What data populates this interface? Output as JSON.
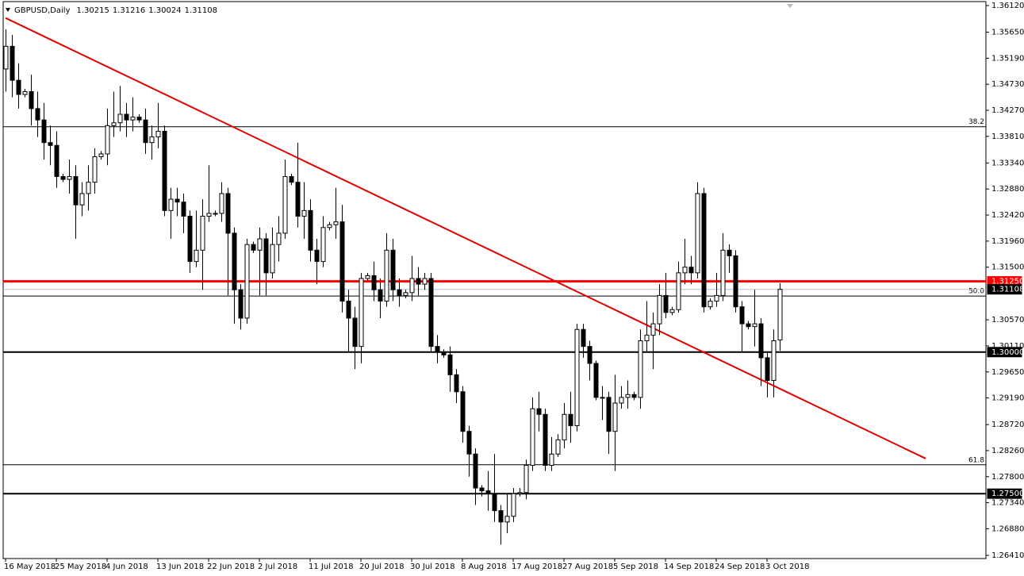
{
  "chart_data": {
    "type": "candlestick",
    "symbol": "GBPUSD,Daily",
    "categories": [
      "16 May 2018",
      null,
      null,
      null,
      null,
      null,
      null,
      null,
      "25 May 2018",
      null,
      null,
      null,
      null,
      null,
      null,
      null,
      "4 Jun 2018",
      null,
      null,
      null,
      null,
      null,
      null,
      null,
      "13 Jun 2018",
      null,
      null,
      null,
      null,
      null,
      null,
      null,
      "22 Jun 2018",
      null,
      null,
      null,
      null,
      null,
      null,
      null,
      "2 Jul 2018",
      null,
      null,
      null,
      null,
      null,
      null,
      null,
      "11 Jul 2018",
      null,
      null,
      null,
      null,
      null,
      null,
      null,
      "20 Jul 2018",
      null,
      null,
      null,
      null,
      null,
      null,
      null,
      "30 Jul 2018",
      null,
      null,
      null,
      null,
      null,
      null,
      null,
      "8 Aug 2018",
      null,
      null,
      null,
      null,
      null,
      null,
      null,
      "17 Aug 2018",
      null,
      null,
      null,
      null,
      null,
      null,
      null,
      "27 Aug 2018",
      null,
      null,
      null,
      null,
      null,
      null,
      null,
      "5 Sep 2018",
      null,
      null,
      null,
      null,
      null,
      null,
      null,
      "14 Sep 2018",
      null,
      null,
      null,
      null,
      null,
      null,
      null,
      "24 Sep 2018",
      null,
      null,
      null,
      null,
      null,
      null,
      null,
      "3 Oct 2018",
      null,
      null
    ],
    "open": [
      1.35,
      1.354,
      1.348,
      1.3455,
      1.346,
      1.343,
      1.341,
      1.337,
      1.3365,
      1.331,
      1.3305,
      1.331,
      1.326,
      1.328,
      1.33,
      1.3345,
      1.335,
      1.34,
      1.3405,
      1.342,
      1.341,
      1.3415,
      1.341,
      1.337,
      1.338,
      1.339,
      1.325,
      1.327,
      1.3265,
      1.324,
      1.316,
      1.318,
      1.324,
      1.3245,
      1.3245,
      1.328,
      1.321,
      1.311,
      1.306,
      1.319,
      1.318,
      1.32,
      1.314,
      1.319,
      1.321,
      1.331,
      1.33,
      1.324,
      1.325,
      1.318,
      1.316,
      1.322,
      1.3225,
      1.323,
      1.309,
      1.306,
      1.301,
      1.313,
      1.3135,
      1.311,
      1.309,
      1.318,
      1.311,
      1.31,
      1.3105,
      1.313,
      1.312,
      1.313,
      1.301,
      1.3,
      1.2995,
      1.296,
      1.293,
      1.286,
      1.282,
      1.276,
      1.2755,
      1.275,
      1.272,
      1.27,
      1.271,
      1.275,
      1.2752,
      1.28,
      1.29,
      1.289,
      1.28,
      1.282,
      1.2845,
      1.289,
      1.287,
      1.304,
      1.301,
      1.298,
      1.292,
      1.292,
      1.286,
      1.291,
      1.292,
      1.2925,
      1.292,
      1.302,
      1.303,
      1.305,
      1.31,
      1.307,
      1.3075,
      1.314,
      1.315,
      1.314,
      1.328,
      1.308,
      1.309,
      1.31,
      1.318,
      1.317,
      1.308,
      1.305,
      1.3045,
      1.305,
      1.299,
      1.295,
      1.30215
    ],
    "high": [
      1.357,
      1.356,
      1.351,
      1.3465,
      1.349,
      1.346,
      1.344,
      1.34,
      1.339,
      1.3315,
      1.334,
      1.333,
      1.33,
      1.333,
      1.336,
      1.3355,
      1.343,
      1.346,
      1.347,
      1.344,
      1.345,
      1.342,
      1.343,
      1.34,
      1.344,
      1.34,
      1.329,
      1.329,
      1.328,
      1.325,
      1.325,
      1.327,
      1.333,
      1.325,
      1.33,
      1.329,
      1.322,
      1.312,
      1.32,
      1.3195,
      1.322,
      1.321,
      1.322,
      1.324,
      1.334,
      1.3315,
      1.337,
      1.33,
      1.327,
      1.32,
      1.324,
      1.323,
      1.329,
      1.326,
      1.311,
      1.308,
      1.314,
      1.314,
      1.316,
      1.313,
      1.321,
      1.32,
      1.313,
      1.311,
      1.317,
      1.315,
      1.314,
      1.314,
      1.303,
      1.3005,
      1.301,
      1.297,
      1.294,
      1.287,
      1.283,
      1.2765,
      1.279,
      1.282,
      1.273,
      1.275,
      1.276,
      1.276,
      1.281,
      1.292,
      1.293,
      1.29,
      1.285,
      1.2855,
      1.291,
      1.293,
      1.305,
      1.305,
      1.302,
      1.2985,
      1.294,
      1.293,
      1.296,
      1.294,
      1.295,
      1.293,
      1.304,
      1.309,
      1.307,
      1.312,
      1.314,
      1.308,
      1.316,
      1.32,
      1.317,
      1.33,
      1.329,
      1.3095,
      1.314,
      1.321,
      1.319,
      1.318,
      1.309,
      1.3055,
      1.311,
      1.306,
      1.3,
      1.304,
      1.31216
    ],
    "low": [
      1.346,
      1.345,
      1.343,
      1.345,
      1.34,
      1.338,
      1.334,
      1.333,
      1.329,
      1.33,
      1.328,
      1.32,
      1.324,
      1.325,
      1.328,
      1.334,
      1.333,
      1.338,
      1.339,
      1.338,
      1.339,
      1.3405,
      1.335,
      1.334,
      1.336,
      1.324,
      1.32,
      1.324,
      1.321,
      1.314,
      1.315,
      1.311,
      1.323,
      1.324,
      1.323,
      1.31,
      1.305,
      1.304,
      1.305,
      1.3175,
      1.31,
      1.31,
      1.313,
      1.316,
      1.32,
      1.3295,
      1.322,
      1.32,
      1.316,
      1.312,
      1.315,
      1.3215,
      1.32,
      1.307,
      1.3,
      1.297,
      1.298,
      1.3125,
      1.309,
      1.306,
      1.308,
      1.309,
      1.308,
      1.3095,
      1.309,
      1.31,
      1.311,
      1.3,
      1.298,
      1.299,
      1.293,
      1.291,
      1.284,
      1.278,
      1.273,
      1.2745,
      1.272,
      1.27,
      1.266,
      1.268,
      1.27,
      1.2745,
      1.274,
      1.279,
      1.286,
      1.279,
      1.279,
      1.2815,
      1.283,
      1.284,
      1.286,
      1.299,
      1.295,
      1.2915,
      1.288,
      1.282,
      1.279,
      1.29,
      1.29,
      1.2915,
      1.29,
      1.3,
      1.297,
      1.303,
      1.306,
      1.3065,
      1.307,
      1.312,
      1.312,
      1.313,
      1.307,
      1.3075,
      1.308,
      1.309,
      1.314,
      1.307,
      1.3,
      1.304,
      1.301,
      1.294,
      1.292,
      1.292,
      1.30024
    ],
    "close": [
      1.354,
      1.348,
      1.3455,
      1.346,
      1.343,
      1.341,
      1.337,
      1.3365,
      1.331,
      1.3305,
      1.331,
      1.326,
      1.328,
      1.33,
      1.3345,
      1.335,
      1.34,
      1.3405,
      1.342,
      1.341,
      1.3415,
      1.341,
      1.337,
      1.338,
      1.339,
      1.325,
      1.327,
      1.3265,
      1.324,
      1.316,
      1.318,
      1.324,
      1.3245,
      1.3245,
      1.328,
      1.321,
      1.311,
      1.306,
      1.319,
      1.318,
      1.32,
      1.314,
      1.319,
      1.321,
      1.331,
      1.33,
      1.324,
      1.325,
      1.318,
      1.316,
      1.322,
      1.3225,
      1.323,
      1.309,
      1.306,
      1.301,
      1.313,
      1.3135,
      1.311,
      1.309,
      1.318,
      1.311,
      1.31,
      1.3105,
      1.313,
      1.312,
      1.313,
      1.301,
      1.3,
      1.2995,
      1.296,
      1.293,
      1.286,
      1.282,
      1.276,
      1.2755,
      1.275,
      1.272,
      1.27,
      1.271,
      1.275,
      1.2752,
      1.28,
      1.29,
      1.289,
      1.28,
      1.282,
      1.2845,
      1.289,
      1.287,
      1.304,
      1.301,
      1.298,
      1.292,
      1.292,
      1.286,
      1.291,
      1.292,
      1.2925,
      1.292,
      1.302,
      1.303,
      1.305,
      1.31,
      1.307,
      1.3075,
      1.314,
      1.315,
      1.314,
      1.328,
      1.308,
      1.309,
      1.31,
      1.318,
      1.317,
      1.308,
      1.305,
      1.3045,
      1.305,
      1.299,
      1.295,
      1.302,
      1.31108
    ],
    "ylim": [
      1.2641,
      1.3612
    ],
    "yticks": [
      {
        "value": 1.3612,
        "label": "1.36120"
      },
      {
        "value": 1.3565,
        "label": "1.35650"
      },
      {
        "value": 1.3519,
        "label": "1.35190"
      },
      {
        "value": 1.3473,
        "label": "1.34730"
      },
      {
        "value": 1.3427,
        "label": "1.34270"
      },
      {
        "value": 1.3381,
        "label": "1.33810"
      },
      {
        "value": 1.3334,
        "label": "1.33340"
      },
      {
        "value": 1.3288,
        "label": "1.32880"
      },
      {
        "value": 1.3242,
        "label": "1.32420"
      },
      {
        "value": 1.3196,
        "label": "1.31960"
      },
      {
        "value": 1.315,
        "label": "1.31500"
      },
      {
        "value": 1.3057,
        "label": "1.30570"
      },
      {
        "value": 1.3011,
        "label": "1.30110"
      },
      {
        "value": 1.2965,
        "label": "1.29650"
      },
      {
        "value": 1.2919,
        "label": "1.29190"
      },
      {
        "value": 1.2872,
        "label": "1.28720"
      },
      {
        "value": 1.2826,
        "label": "1.28260"
      },
      {
        "value": 1.278,
        "label": "1.27800"
      },
      {
        "value": 1.2734,
        "label": "1.27340"
      },
      {
        "value": 1.2688,
        "label": "1.26880"
      },
      {
        "value": 1.2641,
        "label": "1.26410"
      }
    ],
    "fib_levels": [
      {
        "value": 1.3398,
        "label": "38.2"
      },
      {
        "value": 1.3099,
        "label": "50.0"
      },
      {
        "value": 1.2801,
        "label": "61.8"
      }
    ],
    "levels": [
      {
        "value": 1.3125,
        "label": "1.31250",
        "color": "#ff0000",
        "width": 3
      },
      {
        "value": 1.3,
        "label": "1.30000",
        "color": "#000000",
        "width": 2
      },
      {
        "value": 1.275,
        "label": "1.27500",
        "color": "#000000",
        "width": 2
      }
    ],
    "trendline": {
      "x": [
        0,
        145
      ],
      "y": [
        1.359,
        1.2812
      ],
      "color": "#e00000"
    },
    "up_color": "#ffffff",
    "down_color": "#000000"
  }
}
